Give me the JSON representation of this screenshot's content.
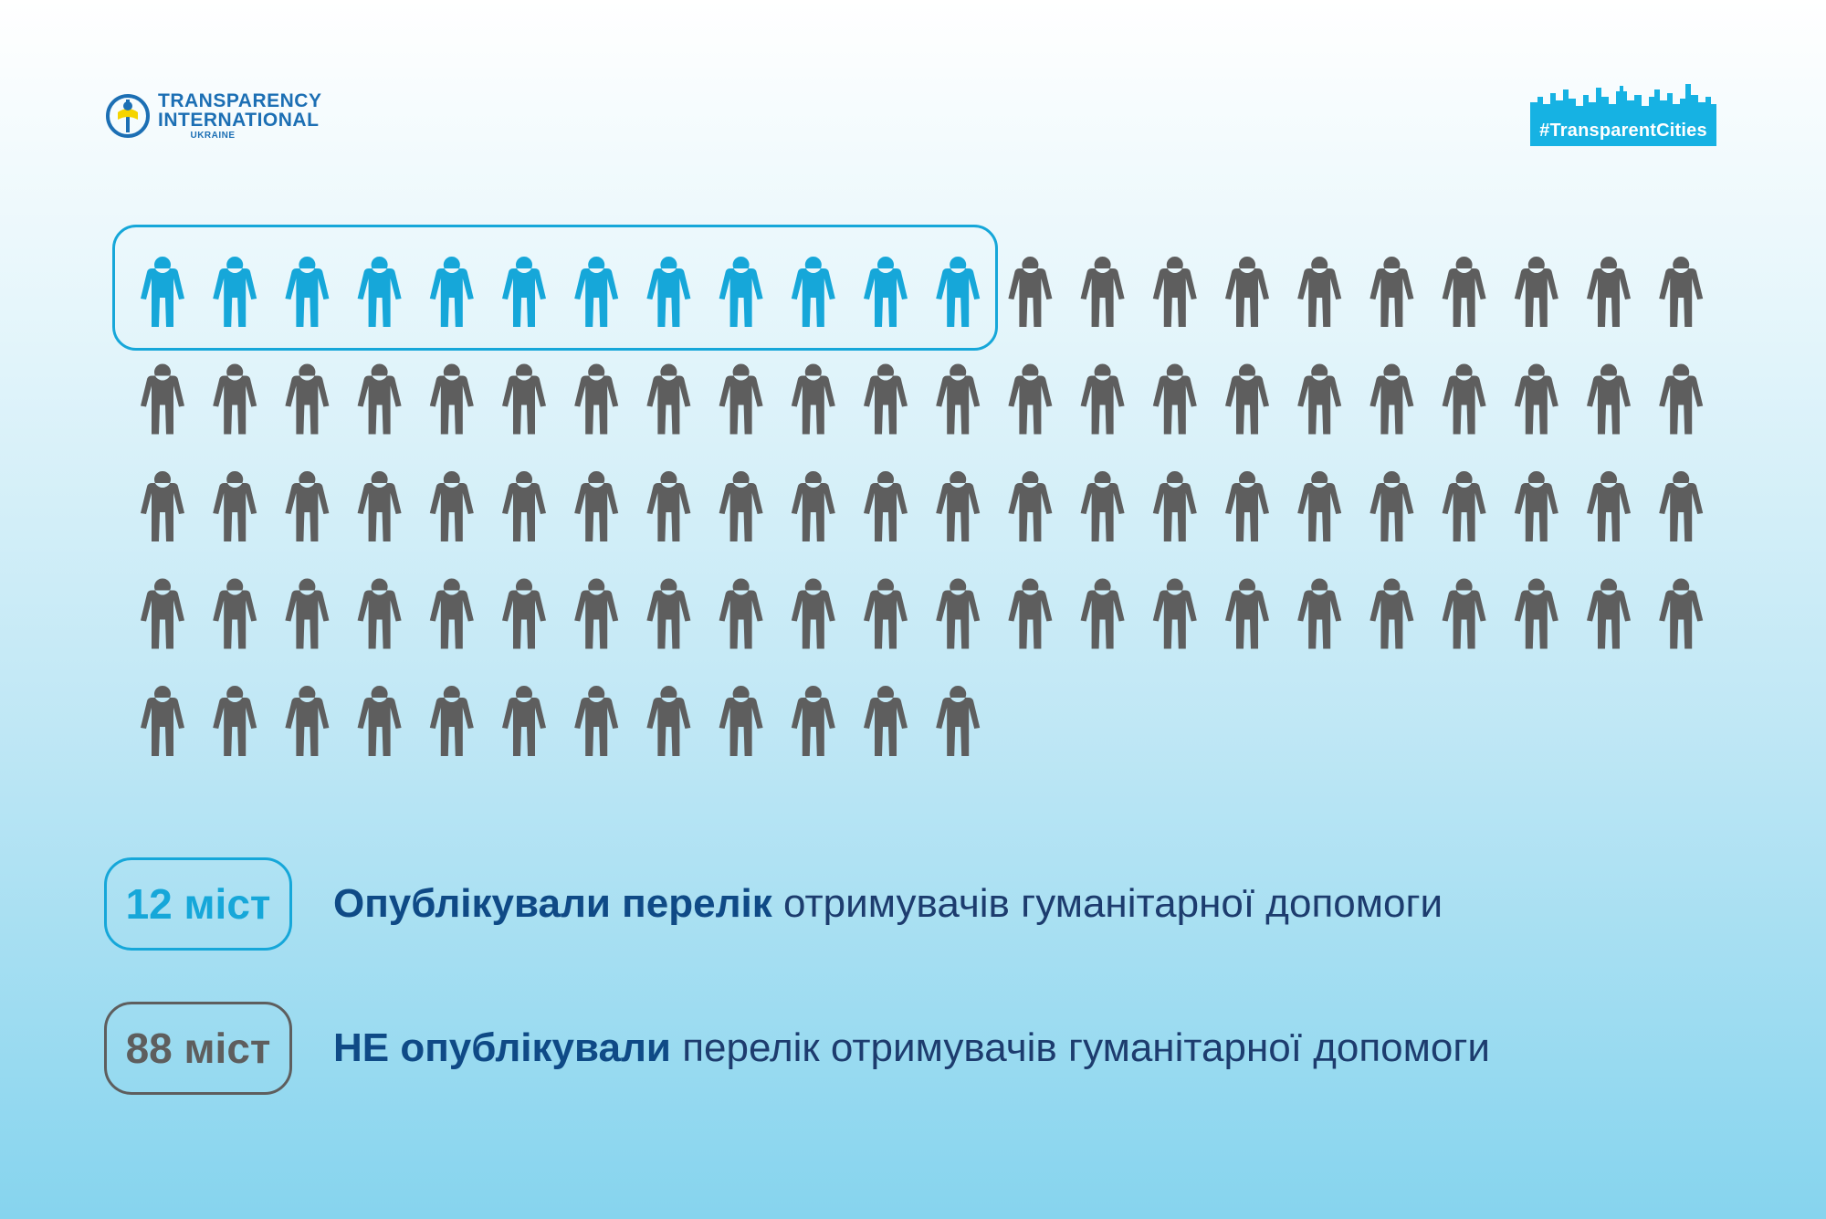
{
  "header": {
    "logo": {
      "line1": "TRANSPARENCY",
      "line2": "INTERNATIONAL",
      "line3": "UKRAINE"
    },
    "hashtag": "#TransparentCities"
  },
  "colors": {
    "highlight": "#16a7d9",
    "default": "#5e5e5e",
    "title_text": "#0f4a86"
  },
  "chart_data": {
    "type": "pictogram",
    "total": 100,
    "columns": 22,
    "icon": "person-icon",
    "series": [
      {
        "value": 12,
        "color": "#16a7d9",
        "boxed": true
      },
      {
        "value": 88,
        "color": "#5e5e5e",
        "boxed": false
      }
    ]
  },
  "legend": [
    {
      "badge": "12 міст",
      "bold": "Опублікували перелік",
      "rest": " отримувачів гуманітарної допомоги"
    },
    {
      "badge": "88 міст",
      "bold": "НЕ опублікували",
      "rest": " перелік отримувачів гуманітарної допомоги"
    }
  ]
}
